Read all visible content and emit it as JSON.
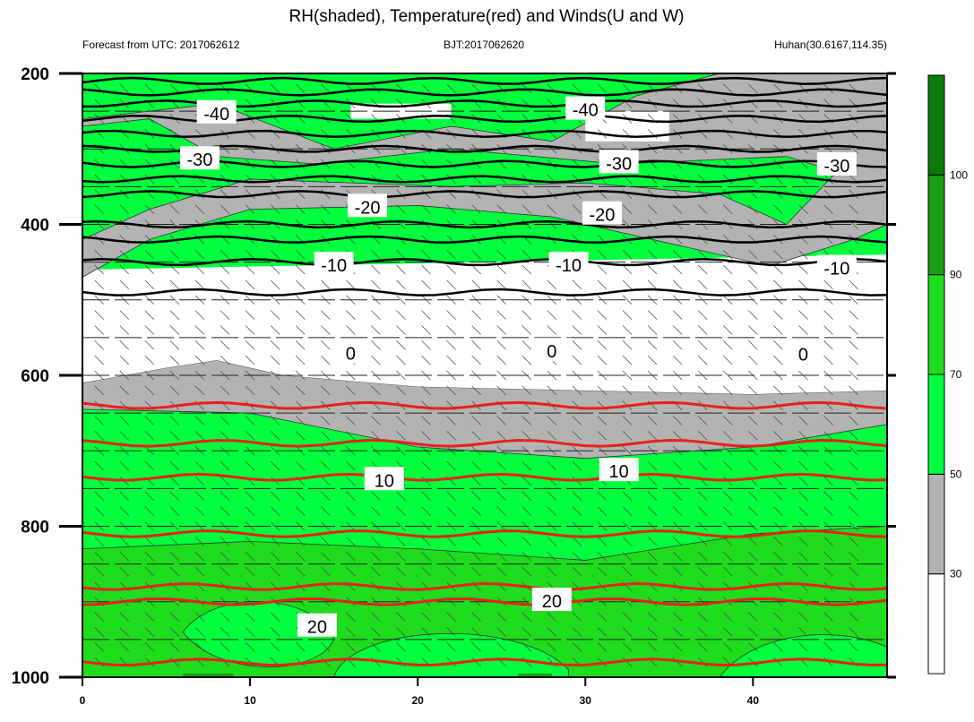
{
  "title": "RH(shaded), Temperature(red) and Winds(U and W)",
  "header": {
    "left": "Forecast from UTC: 2017062612",
    "center": "BJT:2017062620",
    "right": "Huhan(30.6167,114.35)"
  },
  "chart_data": {
    "type": "heatmap",
    "title": "RH(shaded), Temperature(red) and Winds(U and W)",
    "xlim": [
      0,
      48
    ],
    "ylim": [
      1000,
      200
    ],
    "x_ticks": [
      "0",
      "10",
      "20",
      "30",
      "40"
    ],
    "y_ticks": [
      "200",
      "400",
      "600",
      "800",
      "1000"
    ],
    "colorbar": {
      "levels": [
        "30",
        "50",
        "70",
        "90",
        "100"
      ],
      "colors": [
        "#ffffff",
        "#b3b3b3",
        "#00ff3c",
        "#20dc1e",
        "#189f14",
        "#0a7a08"
      ]
    },
    "rh_shading": {
      "light_green_bands": [
        [
          620,
          1000
        ],
        [
          280,
          420
        ]
      ],
      "gray_bands": [
        [
          600,
          700
        ],
        [
          220,
          300
        ]
      ],
      "white_band": [
        460,
        600
      ]
    },
    "temperature_contours_black": [
      {
        "label": "-40",
        "pressure": 240
      },
      {
        "label": "-30",
        "pressure": 320
      },
      {
        "label": "-20",
        "pressure": 380
      },
      {
        "label": "-10",
        "pressure": 450
      },
      {
        "label": "0",
        "pressure": 560
      }
    ],
    "temperature_contours_red": [
      {
        "label": "10",
        "pressure": 735
      },
      {
        "label": "20",
        "pressure": 900
      }
    ],
    "contour_labels": [
      {
        "text": "-40",
        "x": 8,
        "p": 252
      },
      {
        "text": "-40",
        "x": 30,
        "p": 247
      },
      {
        "text": "-30",
        "x": 7,
        "p": 313
      },
      {
        "text": "-30",
        "x": 32,
        "p": 318
      },
      {
        "text": "-30",
        "x": 45,
        "p": 321
      },
      {
        "text": "-20",
        "x": 17,
        "p": 376
      },
      {
        "text": "-20",
        "x": 31,
        "p": 386
      },
      {
        "text": "-10",
        "x": 15,
        "p": 453
      },
      {
        "text": "-10",
        "x": 29,
        "p": 453
      },
      {
        "text": "-10",
        "x": 45,
        "p": 457
      },
      {
        "text": "0",
        "x": 16,
        "p": 570
      },
      {
        "text": "0",
        "x": 28,
        "p": 567
      },
      {
        "text": "0",
        "x": 43,
        "p": 571
      },
      {
        "text": "10",
        "x": 18,
        "p": 738
      },
      {
        "text": "10",
        "x": 32,
        "p": 726
      },
      {
        "text": "20",
        "x": 14,
        "p": 932
      },
      {
        "text": "20",
        "x": 28,
        "p": 898
      }
    ]
  }
}
